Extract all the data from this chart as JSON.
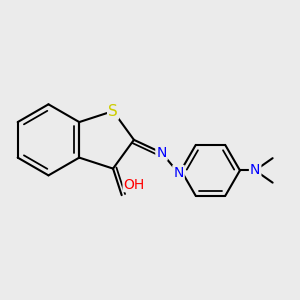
{
  "background_color": "#ebebeb",
  "bond_color": "#000000",
  "bond_width": 1.5,
  "atom_colors": {
    "S": "#cccc00",
    "O": "#ff0000",
    "N": "#0000ff",
    "C": "#000000"
  },
  "font_size_atoms": 10,
  "font_size_small": 9
}
